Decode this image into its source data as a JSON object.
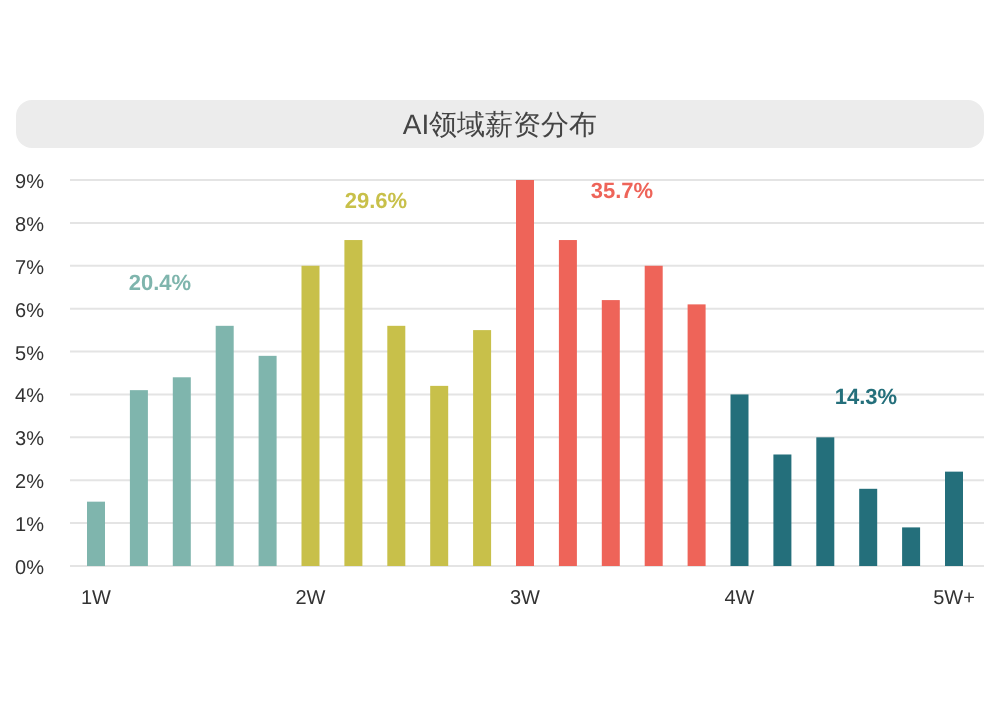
{
  "chart_data": {
    "type": "bar",
    "title": "AI领域薪资分布",
    "categories": [
      "1W",
      null,
      null,
      null,
      null,
      "2W",
      null,
      null,
      null,
      null,
      "3W",
      null,
      null,
      null,
      null,
      "4W",
      null,
      null,
      null,
      null,
      "5W+"
    ],
    "values": [
      1.5,
      4.1,
      4.4,
      5.6,
      4.9,
      7.0,
      7.6,
      5.6,
      4.2,
      5.5,
      9.0,
      7.6,
      6.2,
      7.0,
      6.1,
      4.0,
      2.6,
      3.0,
      1.8,
      0.9,
      2.2
    ],
    "colors": [
      "#7fb5ad",
      "#7fb5ad",
      "#7fb5ad",
      "#7fb5ad",
      "#7fb5ad",
      "#c8c04a",
      "#c8c04a",
      "#c8c04a",
      "#c8c04a",
      "#c8c04a",
      "#ee6459",
      "#ee6459",
      "#ee6459",
      "#ee6459",
      "#ee6459",
      "#246f7b",
      "#246f7b",
      "#246f7b",
      "#246f7b",
      "#246f7b",
      "#246f7b"
    ],
    "ylim": [
      0,
      9
    ],
    "yticks": [
      {
        "value": 0,
        "label": "0%"
      },
      {
        "value": 1,
        "label": "1%"
      },
      {
        "value": 2,
        "label": "2%"
      },
      {
        "value": 3,
        "label": "3%"
      },
      {
        "value": 4,
        "label": "4%"
      },
      {
        "value": 5,
        "label": "5%"
      },
      {
        "value": 6,
        "label": "6%"
      },
      {
        "value": 7,
        "label": "7%"
      },
      {
        "value": 8,
        "label": "8%"
      },
      {
        "value": 9,
        "label": "9%"
      }
    ],
    "grid": "y",
    "annotations": [
      "20.4%",
      "29.6%",
      "35.7%",
      "14.3%"
    ]
  }
}
